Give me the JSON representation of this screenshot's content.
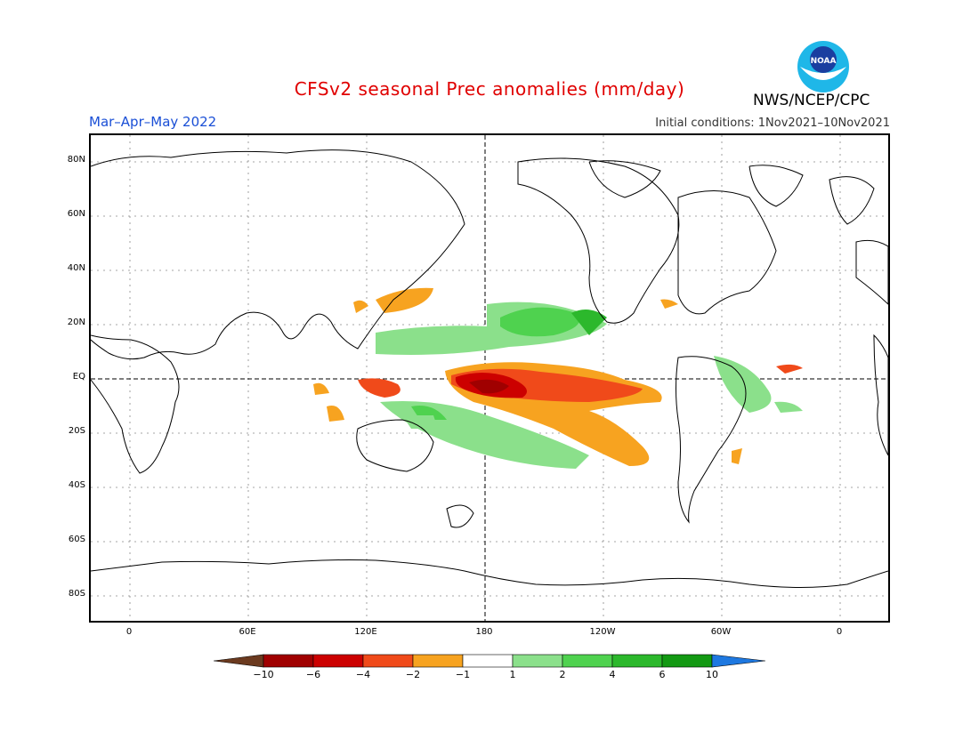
{
  "title": "CFSv2 seasonal Prec anomalies (mm/day)",
  "season": "Mar–Apr–May 2022",
  "init_conditions": "Initial conditions: 1Nov2021–10Nov2021",
  "agency": "NWS/NCEP/CPC",
  "logo": {
    "text": "NOAA",
    "icon": "noaa-logo-icon"
  },
  "lat_labels": [
    "80N",
    "60N",
    "40N",
    "20N",
    "EQ",
    "20S",
    "40S",
    "60S",
    "80S"
  ],
  "lon_labels": [
    "0",
    "60E",
    "120E",
    "180",
    "120W",
    "60W",
    "0"
  ],
  "colorbar": {
    "labels": [
      "−10",
      "−6",
      "−4",
      "−2",
      "−1",
      "1",
      "2",
      "4",
      "6",
      "10"
    ],
    "colors": [
      "#6b3a1f",
      "#a00000",
      "#cc0000",
      "#f04a1a",
      "#f7a320",
      "#ffffff",
      "#8be08b",
      "#4fd24f",
      "#2cb82c",
      "#139913",
      "#1e78e0"
    ]
  }
}
